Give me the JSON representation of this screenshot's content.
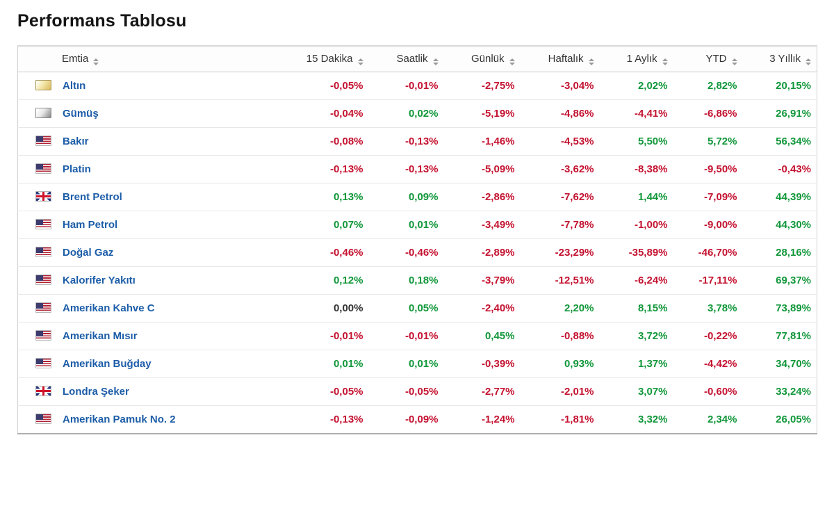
{
  "page": {
    "title": "Performans Tablosu"
  },
  "colors": {
    "positive": "#11973a",
    "negative": "#c41230",
    "neutral": "#333333",
    "link": "#1c5da8"
  },
  "icons": {
    "sort": "up-down-triangles",
    "gold": "gold-bar",
    "silver": "silver-bar",
    "us": "us-flag",
    "uk": "uk-flag"
  },
  "table": {
    "columns": [
      {
        "label": "Emtia",
        "sortable": true
      },
      {
        "label": "15 Dakika",
        "sortable": true
      },
      {
        "label": "Saatlik",
        "sortable": true
      },
      {
        "label": "Günlük",
        "sortable": true
      },
      {
        "label": "Haftalık",
        "sortable": true
      },
      {
        "label": "1 Aylık",
        "sortable": true
      },
      {
        "label": "YTD",
        "sortable": true
      },
      {
        "label": "3 Yıllık",
        "sortable": true
      }
    ],
    "rows": [
      {
        "name": "Altın",
        "flag": "gold",
        "values": [
          "-0,05%",
          "-0,01%",
          "-2,75%",
          "-3,04%",
          "2,02%",
          "2,82%",
          "20,15%"
        ]
      },
      {
        "name": "Gümüş",
        "flag": "silver",
        "values": [
          "-0,04%",
          "0,02%",
          "-5,19%",
          "-4,86%",
          "-4,41%",
          "-6,86%",
          "26,91%"
        ]
      },
      {
        "name": "Bakır",
        "flag": "us",
        "values": [
          "-0,08%",
          "-0,13%",
          "-1,46%",
          "-4,53%",
          "5,50%",
          "5,72%",
          "56,34%"
        ]
      },
      {
        "name": "Platin",
        "flag": "us",
        "values": [
          "-0,13%",
          "-0,13%",
          "-5,09%",
          "-3,62%",
          "-8,38%",
          "-9,50%",
          "-0,43%"
        ]
      },
      {
        "name": "Brent Petrol",
        "flag": "uk",
        "values": [
          "0,13%",
          "0,09%",
          "-2,86%",
          "-7,62%",
          "1,44%",
          "-7,09%",
          "44,39%"
        ]
      },
      {
        "name": "Ham Petrol",
        "flag": "us",
        "values": [
          "0,07%",
          "0,01%",
          "-3,49%",
          "-7,78%",
          "-1,00%",
          "-9,00%",
          "44,30%"
        ]
      },
      {
        "name": "Doğal Gaz",
        "flag": "us",
        "values": [
          "-0,46%",
          "-0,46%",
          "-2,89%",
          "-23,29%",
          "-35,89%",
          "-46,70%",
          "28,16%"
        ]
      },
      {
        "name": "Kalorifer Yakıtı",
        "flag": "us",
        "values": [
          "0,12%",
          "0,18%",
          "-3,79%",
          "-12,51%",
          "-6,24%",
          "-17,11%",
          "69,37%"
        ]
      },
      {
        "name": "Amerikan Kahve C",
        "flag": "us",
        "values": [
          "0,00%",
          "0,05%",
          "-2,40%",
          "2,20%",
          "8,15%",
          "3,78%",
          "73,89%"
        ]
      },
      {
        "name": "Amerikan Mısır",
        "flag": "us",
        "values": [
          "-0,01%",
          "-0,01%",
          "0,45%",
          "-0,88%",
          "3,72%",
          "-0,22%",
          "77,81%"
        ]
      },
      {
        "name": "Amerikan Buğday",
        "flag": "us",
        "values": [
          "0,01%",
          "0,01%",
          "-0,39%",
          "0,93%",
          "1,37%",
          "-4,42%",
          "34,70%"
        ]
      },
      {
        "name": "Londra Şeker",
        "flag": "uk",
        "values": [
          "-0,05%",
          "-0,05%",
          "-2,77%",
          "-2,01%",
          "3,07%",
          "-0,60%",
          "33,24%"
        ]
      },
      {
        "name": "Amerikan Pamuk No. 2",
        "flag": "us",
        "values": [
          "-0,13%",
          "-0,09%",
          "-1,24%",
          "-1,81%",
          "3,32%",
          "2,34%",
          "26,05%"
        ]
      }
    ]
  }
}
